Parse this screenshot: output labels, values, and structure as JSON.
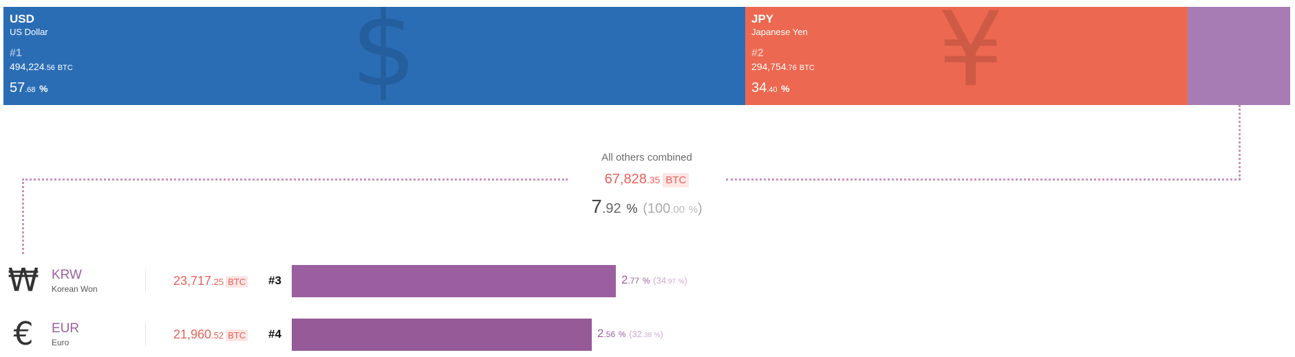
{
  "colors": {
    "usd": "#2a6db5",
    "jpy": "#ec6850",
    "rest": "#a77cb4",
    "krw": "#9b5fa0",
    "eur": "#955a97"
  },
  "chart_data": {
    "type": "bar",
    "title": "",
    "unit": "BTC",
    "top_segments": [
      {
        "code": "USD",
        "name": "US Dollar",
        "rank": "#1",
        "btc_int": "494,224",
        "btc_dec": ".56",
        "btc_unit": "BTC",
        "pct_int": "57",
        "pct_dec": ".68",
        "pct_unit": "%",
        "pct_value": 57.68,
        "symbol": "$",
        "color": "#2a6db5"
      },
      {
        "code": "JPY",
        "name": "Japanese Yen",
        "rank": "#2",
        "btc_int": "294,754",
        "btc_dec": ".76",
        "btc_unit": "BTC",
        "pct_int": "34",
        "pct_dec": ".40",
        "pct_unit": "%",
        "pct_value": 34.4,
        "symbol": "¥",
        "color": "#ec6850"
      },
      {
        "pct_value": 7.92,
        "color": "#a77cb4"
      }
    ],
    "others": {
      "label": "All others combined",
      "btc_int": "67,828",
      "btc_dec": ".35",
      "btc_unit": "BTC",
      "pct_int": "7",
      "pct_dec": ".92",
      "pct_unit": "%",
      "total_int": "100",
      "total_dec": ".00",
      "total_unit": "%"
    },
    "rows": [
      {
        "symbol": "₩",
        "code": "KRW",
        "name": "Korean Won",
        "btc_int": "23,717",
        "btc_dec": ".25",
        "btc_unit": "BTC",
        "rank": "#3",
        "pct_int": "2",
        "pct_dec": ".77",
        "pct_unit": "%",
        "share_int": "34",
        "share_dec": ".97",
        "share_unit": "%",
        "share_value": 34.97,
        "color": "#9b5fa0"
      },
      {
        "symbol": "€",
        "code": "EUR",
        "name": "Euro",
        "btc_int": "21,960",
        "btc_dec": ".52",
        "btc_unit": "BTC",
        "rank": "#4",
        "pct_int": "2",
        "pct_dec": ".56",
        "pct_unit": "%",
        "share_int": "32",
        "share_dec": ".38",
        "share_unit": "%",
        "share_value": 32.38,
        "color": "#955a97"
      }
    ]
  }
}
